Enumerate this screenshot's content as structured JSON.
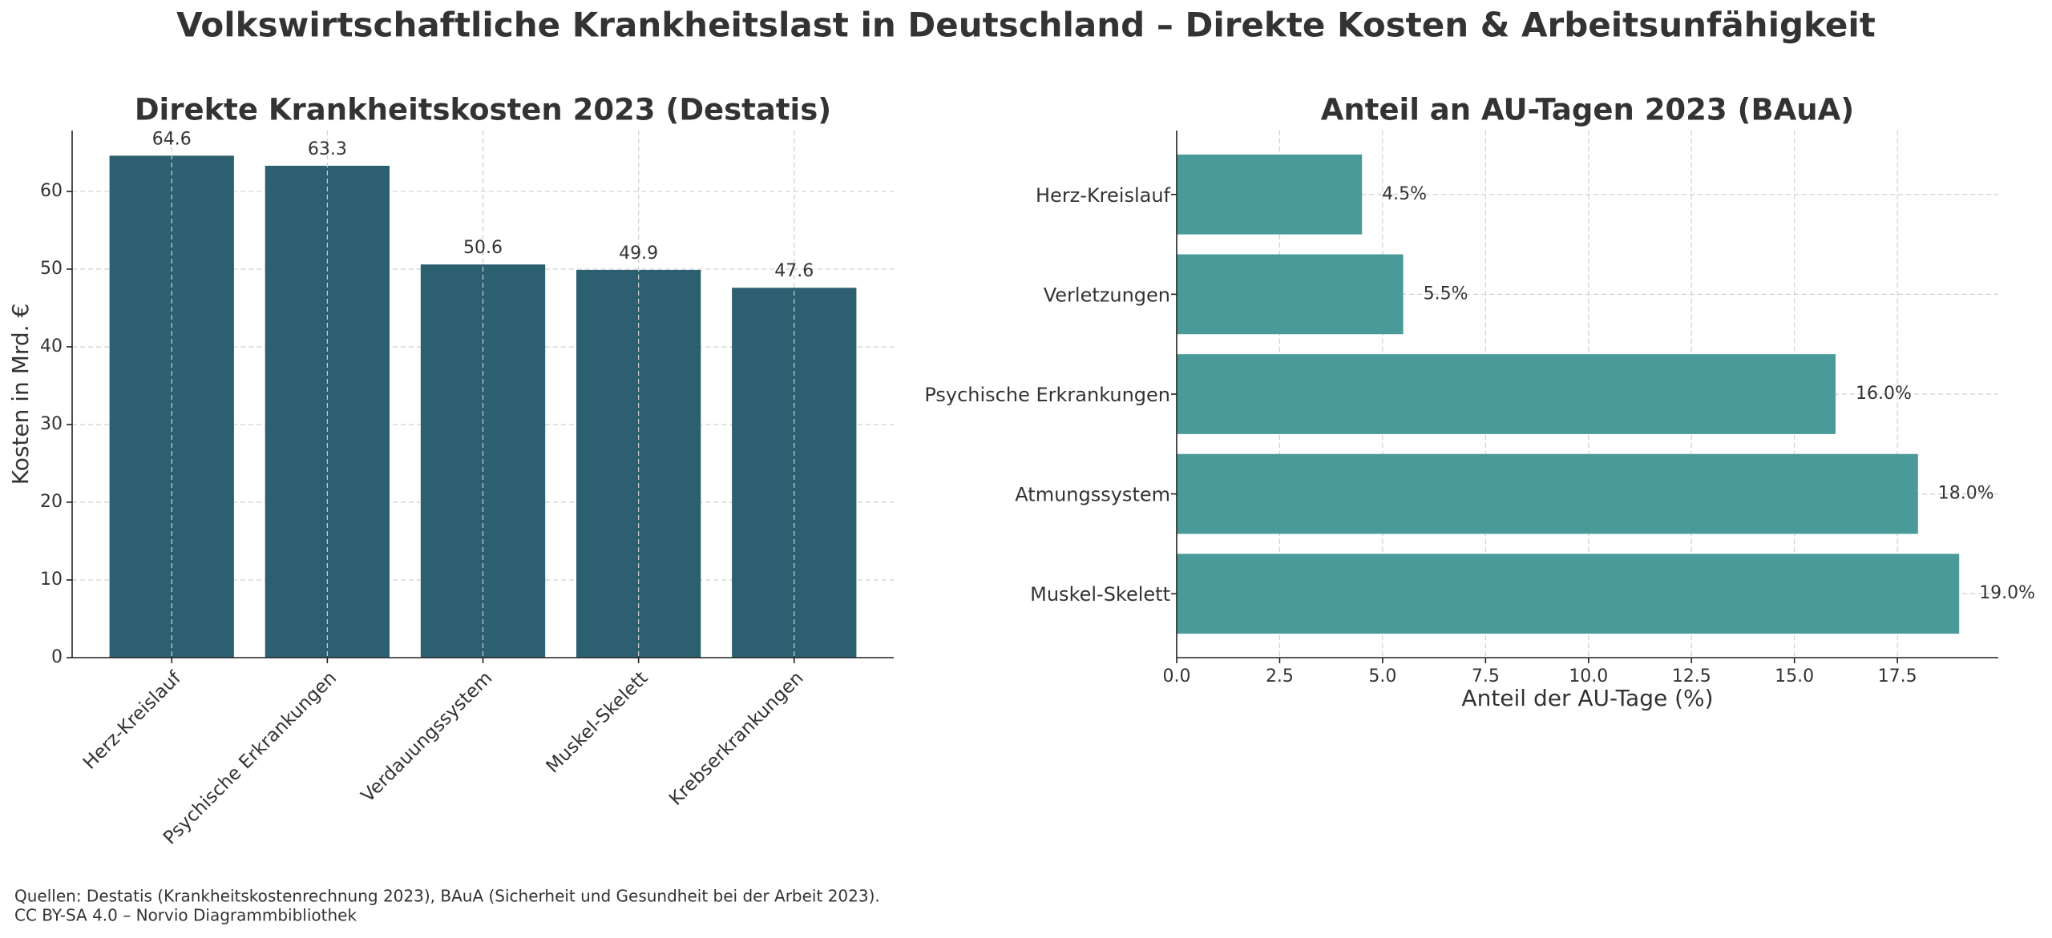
{
  "title": "Volkswirtschaftliche Krankheitslast in Deutschland – Direkte Kosten & Arbeitsunfähigkeit",
  "notes": [
    "Quellen: Destatis (Krankheitskostenrechnung 2023), BAuA (Sicherheit und Gesundheit bei der Arbeit 2023).",
    "CC BY-SA 4.0 – Norvio Diagrammbibliothek"
  ],
  "chart_data": [
    {
      "type": "bar",
      "title": "Direkte Krankheitskosten 2023 (Destatis)",
      "y_label": "Kosten in Mrd. €",
      "categories": [
        "Herz-Kreislauf",
        "Psychische Erkrankungen",
        "Verdauungssystem",
        "Muskel-Skelett",
        "Krebserkrankungen"
      ],
      "values": [
        64.6,
        63.3,
        50.6,
        49.9,
        47.6
      ],
      "color": "#2c5f6f",
      "ylim": [
        0,
        67.83
      ],
      "yticks": [
        0,
        10,
        20,
        30,
        40,
        50,
        60
      ],
      "grid": true
    },
    {
      "type": "barh",
      "title": "Anteil an AU-Tagen 2023 (BAuA)",
      "x_label": "Anteil der AU-Tage (%)",
      "categories": [
        "Herz-Kreislauf",
        "Verletzungen",
        "Psychische Erkrankungen",
        "Atmungssystem",
        "Muskel-Skelett"
      ],
      "values": [
        4.5,
        5.5,
        16.0,
        18.0,
        19.0
      ],
      "value_labels": [
        "4.5%",
        "5.5%",
        "16.0%",
        "18.0%",
        "19.0%"
      ],
      "color": "#4a9a9a",
      "xlim": [
        0,
        19.95
      ],
      "xticks": [
        {
          "value": 0,
          "label": "0.0"
        },
        {
          "value": 2.5,
          "label": "2.5"
        },
        {
          "value": 5,
          "label": "5.0"
        },
        {
          "value": 7.5,
          "label": "7.5"
        },
        {
          "value": 10,
          "label": "10.0"
        },
        {
          "value": 12.5,
          "label": "12.5"
        },
        {
          "value": 15,
          "label": "15.0"
        },
        {
          "value": 17.5,
          "label": "17.5"
        }
      ],
      "grid": true
    }
  ]
}
